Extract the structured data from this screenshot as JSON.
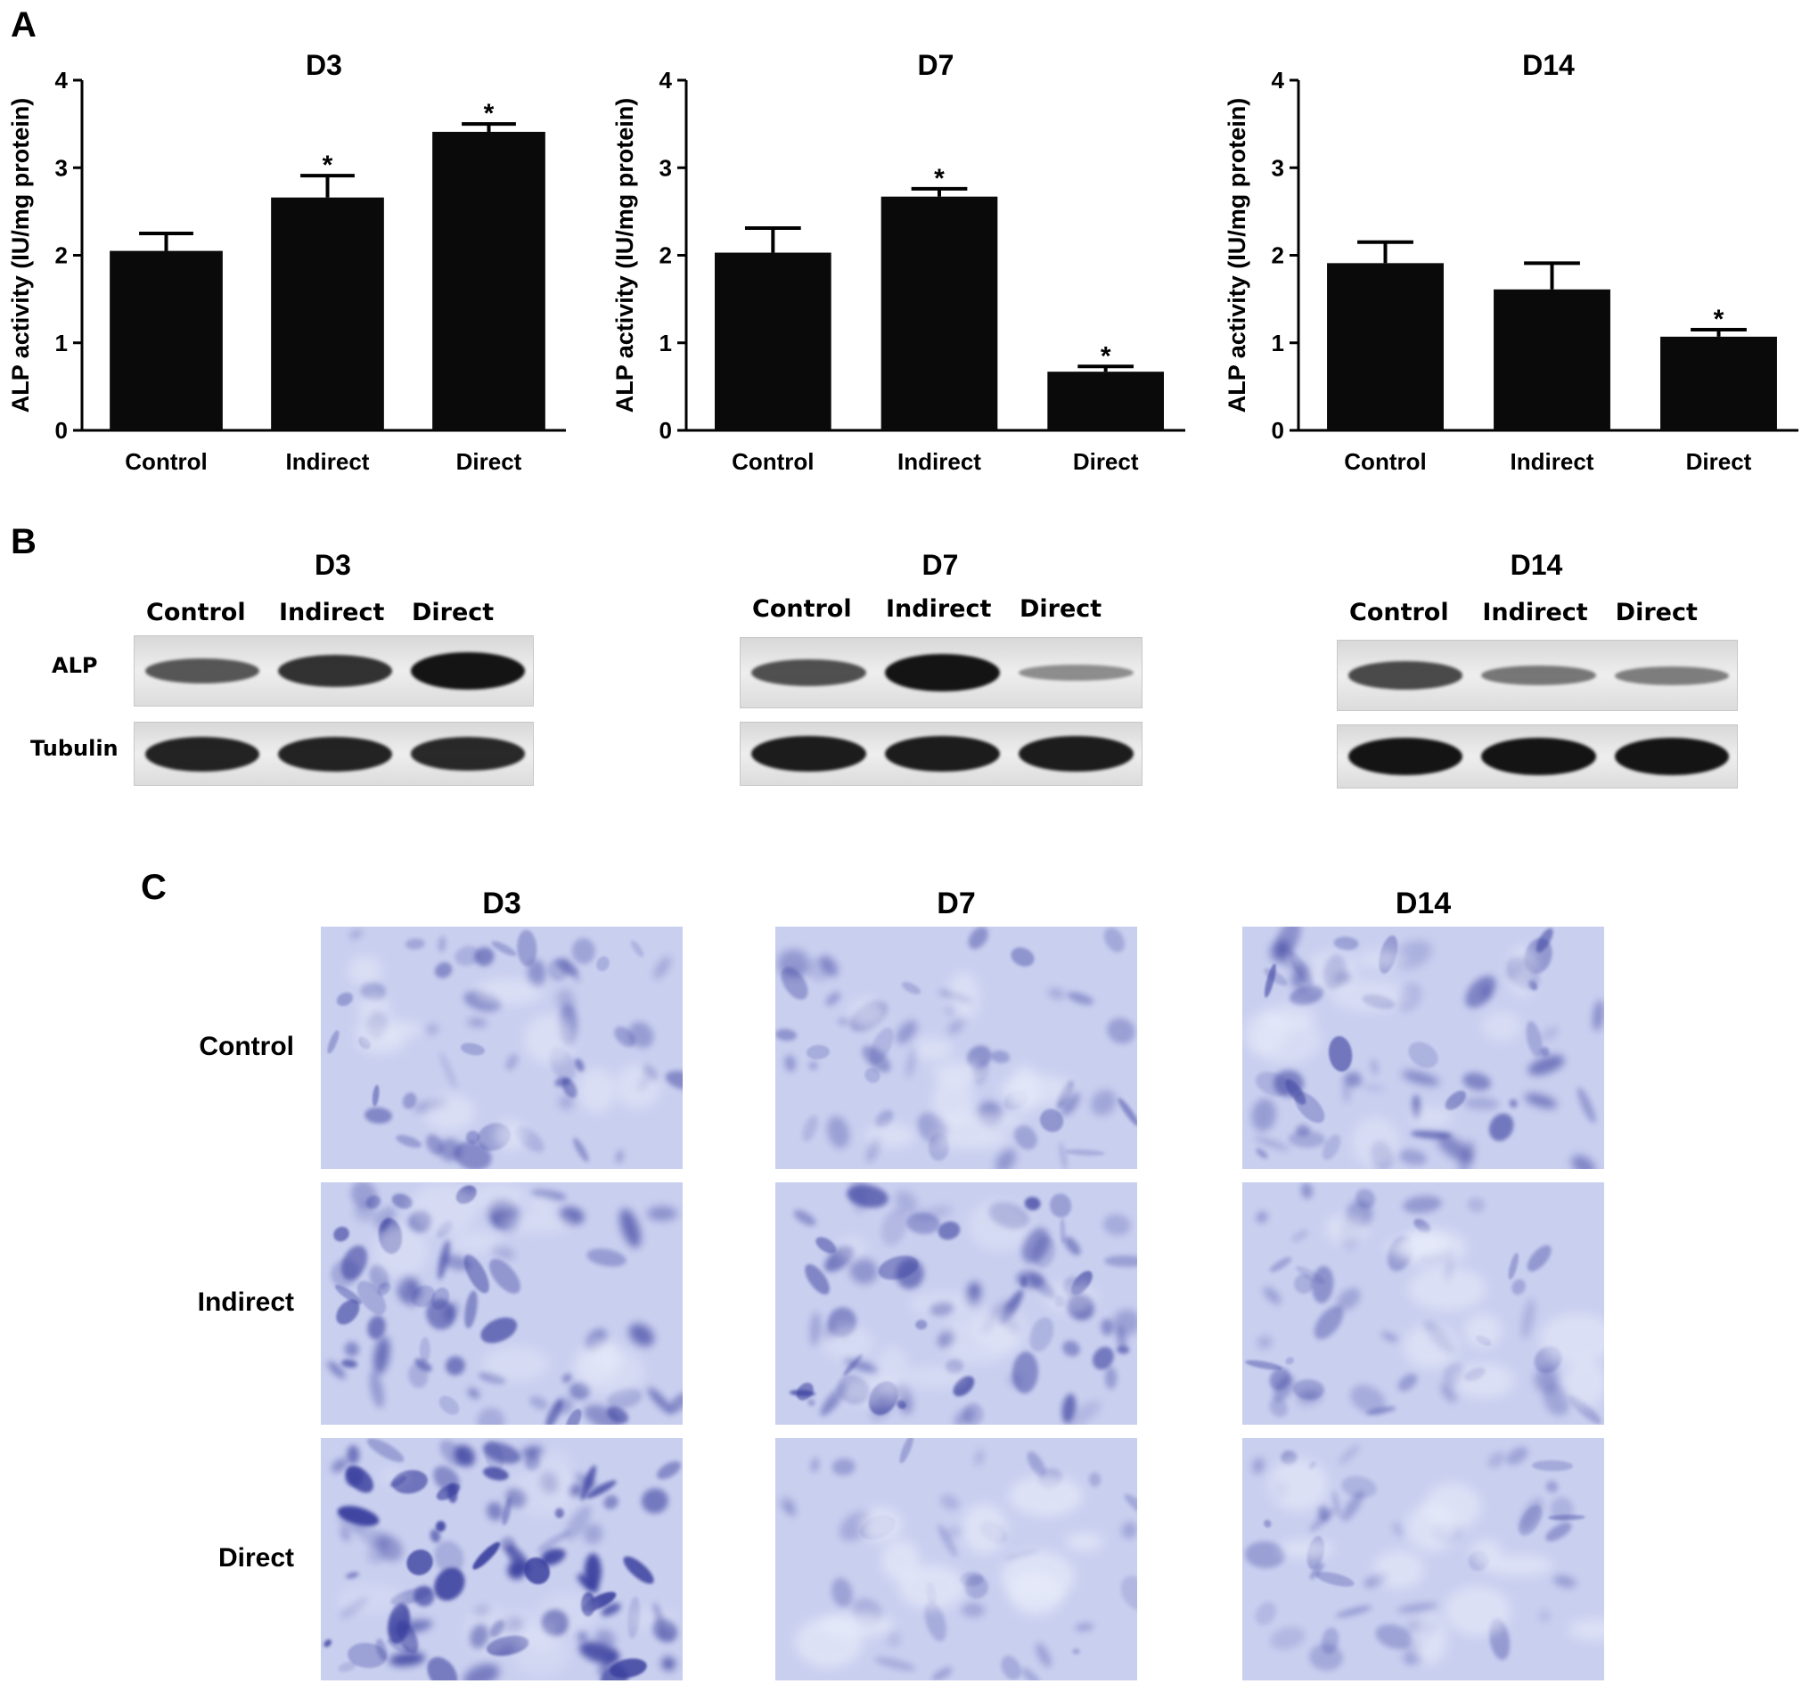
{
  "panel_labels": {
    "a": "A",
    "b": "B",
    "c": "C"
  },
  "chart_data": [
    {
      "type": "bar",
      "title": "D3",
      "ylabel": "ALP activity (IU/mg protein)",
      "xlabel": "",
      "categories": [
        "Control",
        "Indirect",
        "Direct"
      ],
      "values": [
        2.05,
        2.66,
        3.41
      ],
      "errors": [
        0.2,
        0.25,
        0.09
      ],
      "significance": [
        "",
        "*",
        "*"
      ],
      "ylim": [
        0,
        4
      ],
      "yticks": [
        "0",
        "1",
        "2",
        "3",
        "4"
      ],
      "bar_color": "#0a0a0a"
    },
    {
      "type": "bar",
      "title": "D7",
      "ylabel": "ALP activity (IU/mg protein)",
      "xlabel": "",
      "categories": [
        "Control",
        "Indirect",
        "Direct"
      ],
      "values": [
        2.03,
        2.67,
        0.67
      ],
      "errors": [
        0.28,
        0.09,
        0.06
      ],
      "significance": [
        "",
        "*",
        "*"
      ],
      "ylim": [
        0,
        4
      ],
      "yticks": [
        "0",
        "1",
        "2",
        "3",
        "4"
      ],
      "bar_color": "#0a0a0a"
    },
    {
      "type": "bar",
      "title": "D14",
      "ylabel": "ALP activity (IU/mg protein)",
      "xlabel": "",
      "categories": [
        "Control",
        "Indirect",
        "Direct"
      ],
      "values": [
        1.91,
        1.61,
        1.07
      ],
      "errors": [
        0.24,
        0.3,
        0.08
      ],
      "significance": [
        "",
        "",
        "*"
      ],
      "ylim": [
        0,
        4
      ],
      "yticks": [
        "0",
        "1",
        "2",
        "3",
        "4"
      ],
      "bar_color": "#0a0a0a"
    }
  ],
  "western_blot": {
    "row_labels": {
      "alp": "ALP",
      "tubulin": "Tubulin"
    },
    "panels": [
      {
        "title": "D3",
        "lanes": [
          "Control",
          "Indirect",
          "Direct"
        ],
        "alp_intensity": [
          0.55,
          0.8,
          1.0
        ],
        "tubulin_intensity": [
          0.9,
          0.9,
          0.85
        ]
      },
      {
        "title": "D7",
        "lanes": [
          "Control",
          "Indirect",
          "Direct"
        ],
        "alp_intensity": [
          0.6,
          1.0,
          0.2
        ],
        "tubulin_intensity": [
          0.95,
          0.95,
          0.95
        ]
      },
      {
        "title": "D14",
        "lanes": [
          "Control",
          "Indirect",
          "Direct"
        ],
        "alp_intensity": [
          0.65,
          0.35,
          0.3
        ],
        "tubulin_intensity": [
          1.0,
          1.0,
          1.0
        ]
      }
    ]
  },
  "staining": {
    "columns": [
      "D3",
      "D7",
      "D14"
    ],
    "rows": [
      "Control",
      "Indirect",
      "Direct"
    ],
    "stain_density": [
      [
        0.45,
        0.4,
        0.55
      ],
      [
        0.65,
        0.7,
        0.35
      ],
      [
        0.95,
        0.2,
        0.3
      ]
    ],
    "stain_color": "#3a3f9e",
    "background_color": "#c9cfef"
  }
}
